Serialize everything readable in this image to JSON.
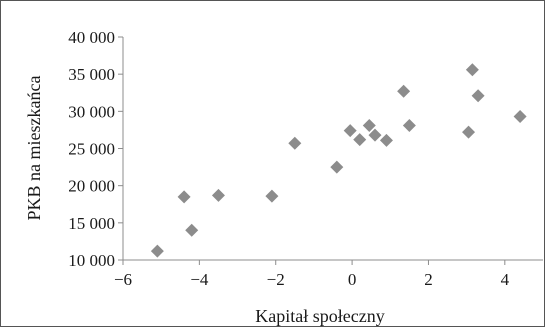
{
  "chart_data": {
    "type": "scatter",
    "title": "",
    "xlabel": "Kapitał społeczny",
    "ylabel": "PKB na mieszkańca",
    "xlim": [
      -6,
      5
    ],
    "ylim": [
      10000,
      40000
    ],
    "x_ticks": [
      -6,
      -4,
      -2,
      0,
      2,
      4
    ],
    "x_tick_labels": [
      "−6",
      "−4",
      "−2",
      "0",
      "2",
      "4"
    ],
    "y_ticks": [
      10000,
      15000,
      20000,
      25000,
      30000,
      35000,
      40000
    ],
    "y_tick_labels": [
      "10 000",
      "15 000",
      "20 000",
      "25 000",
      "30 000",
      "35 000",
      "40 000"
    ],
    "grid": false,
    "marker": "diamond",
    "marker_color": "#8c8c8c",
    "points": [
      {
        "x": -5.1,
        "y": 11200
      },
      {
        "x": -4.4,
        "y": 18500
      },
      {
        "x": -4.2,
        "y": 14000
      },
      {
        "x": -3.5,
        "y": 18700
      },
      {
        "x": -2.1,
        "y": 18600
      },
      {
        "x": -1.5,
        "y": 25700
      },
      {
        "x": -0.4,
        "y": 22500
      },
      {
        "x": -0.05,
        "y": 27400
      },
      {
        "x": 0.2,
        "y": 26200
      },
      {
        "x": 0.45,
        "y": 28100
      },
      {
        "x": 0.6,
        "y": 26800
      },
      {
        "x": 0.9,
        "y": 26100
      },
      {
        "x": 1.35,
        "y": 32700
      },
      {
        "x": 1.5,
        "y": 28100
      },
      {
        "x": 3.05,
        "y": 27200
      },
      {
        "x": 3.15,
        "y": 35600
      },
      {
        "x": 3.3,
        "y": 32100
      },
      {
        "x": 4.4,
        "y": 29300
      }
    ]
  }
}
